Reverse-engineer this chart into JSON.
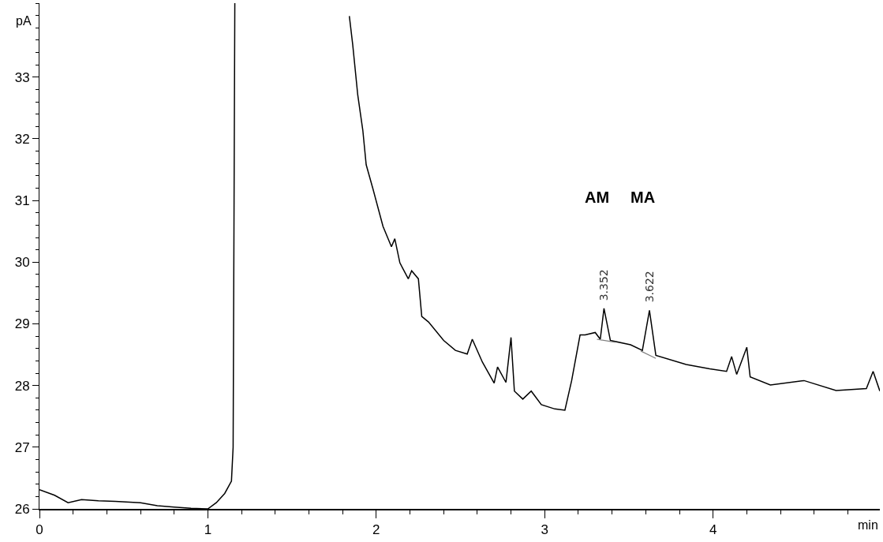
{
  "chart_data": {
    "type": "line",
    "xlabel": "min",
    "ylabel": "pA",
    "xlim": [
      0,
      4.99
    ],
    "ylim": [
      26,
      34.2
    ],
    "xticks": [
      0,
      1,
      2,
      3,
      4
    ],
    "yticks": [
      26,
      27,
      28,
      29,
      30,
      31,
      32,
      33
    ],
    "marker": "none",
    "line_style": "solid",
    "series": [
      {
        "color": "#000000",
        "x": [
          0,
          0.09,
          0.17,
          0.25,
          0.35,
          0.45,
          0.6,
          0.7,
          0.8,
          0.9,
          1.0,
          1.05,
          1.1,
          1.14,
          1.15,
          1.16,
          1.5,
          1.84,
          1.86,
          1.89,
          1.92,
          1.94,
          1.98,
          2.04,
          2.09,
          2.11,
          2.14,
          2.19,
          2.21,
          2.25,
          2.27,
          2.31,
          2.4,
          2.47,
          2.54,
          2.57,
          2.63,
          2.7,
          2.72,
          2.77,
          2.8,
          2.82,
          2.87,
          2.92,
          2.98,
          3.06,
          3.12,
          3.16,
          3.21,
          3.24,
          3.3,
          3.33,
          3.352,
          3.39,
          3.51,
          3.58,
          3.622,
          3.66,
          3.84,
          3.98,
          4.08,
          4.11,
          4.14,
          4.2,
          4.22,
          4.34,
          4.54,
          4.73,
          4.91,
          4.95,
          4.99
        ],
        "values": [
          26.31,
          26.22,
          26.1,
          26.15,
          26.13,
          26.12,
          26.1,
          26.05,
          26.03,
          26.01,
          26.0,
          26.1,
          26.25,
          26.45,
          27.0,
          34.2,
          null,
          33.99,
          33.53,
          32.71,
          32.14,
          31.58,
          31.19,
          30.58,
          30.25,
          30.38,
          29.99,
          29.73,
          29.86,
          29.73,
          29.12,
          29.03,
          28.73,
          28.57,
          28.51,
          28.75,
          28.38,
          28.04,
          28.3,
          28.05,
          28.78,
          27.91,
          27.78,
          27.91,
          27.69,
          27.62,
          27.6,
          28.08,
          28.82,
          28.82,
          28.86,
          28.75,
          29.25,
          28.73,
          28.66,
          28.57,
          29.22,
          28.49,
          28.34,
          28.27,
          28.23,
          28.47,
          28.18,
          28.62,
          28.14,
          28.01,
          28.08,
          27.92,
          27.95,
          28.23,
          27.91
        ]
      },
      {
        "color": "#808080",
        "x": [
          3.31,
          3.42
        ],
        "values": [
          28.75,
          28.7
        ]
      },
      {
        "color": "#808080",
        "x": [
          3.57,
          3.66
        ],
        "values": [
          28.56,
          28.44
        ]
      }
    ],
    "annotations": [
      "AM",
      "MA",
      {
        "text": "3.352",
        "x": 3.352,
        "y": 29.25
      },
      {
        "text": "3.622",
        "x": 3.622,
        "y": 29.22
      }
    ]
  }
}
